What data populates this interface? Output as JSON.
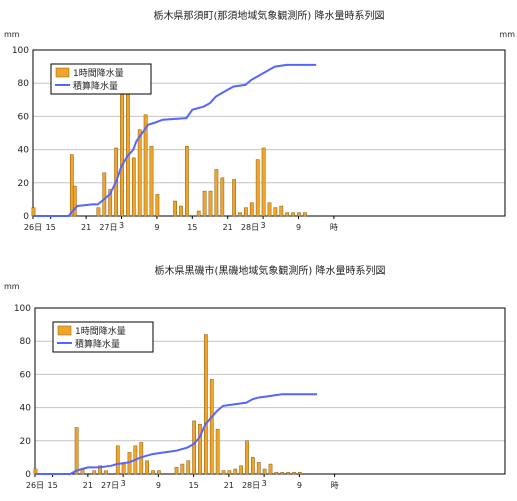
{
  "chart_data": [
    {
      "type": "bar",
      "title": "栃木県那須町(那須地域気象観測所) 降水量時系列図",
      "y_unit_left": "mm",
      "y_unit_right": "mm",
      "x_unit": "時",
      "ylim": [
        0,
        100
      ],
      "yticks": [
        "0",
        "20",
        "40",
        "60",
        "80",
        "100"
      ],
      "xlim": [
        0,
        80
      ],
      "xticks": [
        {
          "x": 0,
          "label": "26日"
        },
        {
          "x": 3,
          "label": "15"
        },
        {
          "x": 9,
          "label": "21"
        },
        {
          "x": 15,
          "label": "3",
          "day": "27日"
        },
        {
          "x": 21,
          "label": "9"
        },
        {
          "x": 27,
          "label": "15"
        },
        {
          "x": 33,
          "label": "21"
        },
        {
          "x": 39,
          "label": "3",
          "day": "28日"
        },
        {
          "x": 45,
          "label": "9"
        },
        {
          "x": 51,
          "label": "時"
        }
      ],
      "grid": true,
      "legend": "top-left",
      "bar_color": "#f0a52a",
      "line_color": "#5566ff",
      "series": [
        {
          "name": "1時間降水量",
          "kind": "bar",
          "x": [
            0,
            6.5,
            7,
            11,
            12,
            13,
            14,
            15,
            16,
            17,
            18,
            19,
            20,
            21,
            24,
            25,
            26,
            28,
            29,
            30,
            31,
            32,
            34,
            35,
            36,
            37,
            38,
            39,
            40,
            41,
            42,
            43,
            44,
            45,
            46
          ],
          "values": [
            5,
            37,
            18,
            5,
            26,
            16,
            41,
            90,
            74,
            35,
            52,
            61,
            42,
            13,
            9,
            6,
            42,
            3,
            15,
            15,
            28,
            23,
            22,
            2,
            5,
            8,
            34,
            41,
            8,
            5,
            6,
            2,
            2,
            2,
            2
          ]
        },
        {
          "name": "積算降水量",
          "kind": "line",
          "x": [
            0,
            6,
            7.5,
            10,
            11,
            12,
            13,
            14,
            15,
            16,
            17,
            17.5,
            18.5,
            19.5,
            20.5,
            22,
            26,
            27,
            29,
            30,
            31,
            33,
            34,
            36,
            37,
            38,
            40,
            41,
            43,
            48
          ],
          "values": [
            0,
            0,
            6,
            7,
            7,
            10,
            13,
            20,
            30,
            36,
            40,
            45,
            50,
            55,
            56,
            58,
            59,
            64,
            66,
            68,
            72,
            76,
            78,
            79,
            82,
            84,
            88,
            90,
            91,
            91
          ]
        }
      ]
    },
    {
      "type": "bar",
      "title": "栃木県黒磯市(黒磯地域気象観測所) 降水量時系列図",
      "y_unit_left": "mm",
      "y_unit_right": "",
      "x_unit": "時",
      "ylim": [
        0,
        100
      ],
      "yticks": [
        "0",
        "20",
        "40",
        "60",
        "80",
        "100"
      ],
      "xlim": [
        0,
        80
      ],
      "xticks": [
        {
          "x": 0,
          "label": "26日"
        },
        {
          "x": 3,
          "label": "15"
        },
        {
          "x": 9,
          "label": "21"
        },
        {
          "x": 15,
          "label": "3",
          "day": "27日"
        },
        {
          "x": 21,
          "label": "9"
        },
        {
          "x": 27,
          "label": "15"
        },
        {
          "x": 33,
          "label": "21"
        },
        {
          "x": 39,
          "label": "3",
          "day": "28日"
        },
        {
          "x": 45,
          "label": "9"
        },
        {
          "x": 51,
          "label": "時"
        }
      ],
      "grid": true,
      "legend": "top-left",
      "bar_color": "#f0a52a",
      "line_color": "#5566ff",
      "series": [
        {
          "name": "1時間降水量",
          "kind": "bar",
          "x": [
            0,
            7,
            8,
            10,
            11,
            12,
            14,
            15,
            16,
            17,
            18,
            19,
            20,
            21,
            24,
            25,
            26,
            27,
            28,
            29,
            30,
            31,
            32,
            33,
            34,
            35,
            36,
            37,
            38,
            39,
            40,
            41,
            42,
            43,
            44,
            45
          ],
          "values": [
            3,
            28,
            3,
            2,
            5,
            2,
            17,
            6,
            13,
            17,
            19,
            8,
            2,
            2,
            4,
            6,
            8,
            32,
            30,
            84,
            57,
            27,
            2,
            2,
            3,
            5,
            20,
            10,
            7,
            3,
            6,
            1,
            1,
            1,
            1,
            1
          ]
        },
        {
          "name": "積算降水量",
          "kind": "line",
          "x": [
            0,
            6,
            7,
            8,
            9,
            11,
            13,
            14,
            16,
            18,
            20,
            22,
            24,
            26,
            27,
            28,
            29,
            30,
            31,
            32,
            34,
            36,
            37,
            38,
            40,
            42,
            44,
            48
          ],
          "values": [
            0,
            0,
            2,
            3,
            4,
            4,
            5,
            6,
            7,
            10,
            12,
            13,
            14,
            16,
            18,
            22,
            30,
            34,
            38,
            41,
            42,
            43,
            45,
            46,
            47,
            48,
            48,
            48
          ]
        }
      ]
    }
  ]
}
